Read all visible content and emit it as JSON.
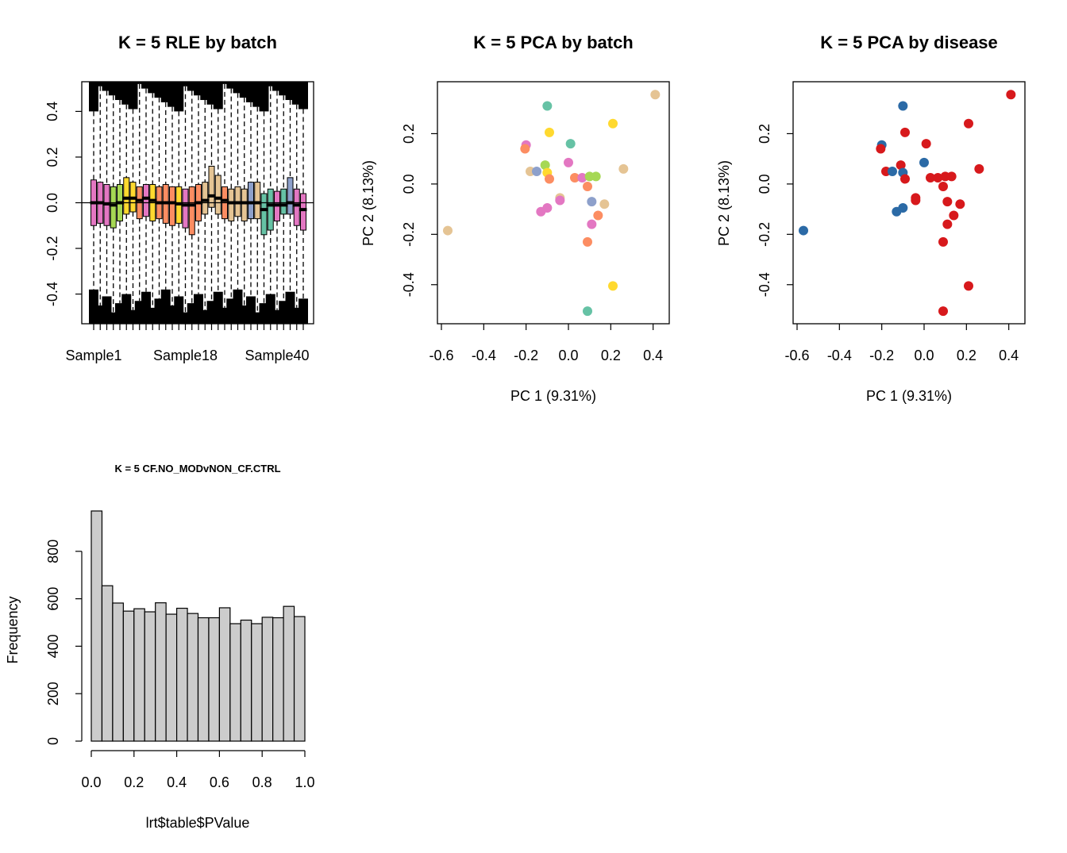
{
  "chart_data": [
    {
      "id": "rle",
      "type": "boxplot",
      "title": "K = 5 RLE by batch",
      "xlabel": "",
      "ylabel": "",
      "ylim": [
        -0.53,
        0.53
      ],
      "yticks": [
        -0.4,
        -0.2,
        0.0,
        0.2,
        0.4
      ],
      "ytick_labels": [
        "-0.4",
        "-0.2",
        "0.0",
        "0.2",
        "0.4"
      ],
      "xtick_labels": [
        {
          "index": 0,
          "label": "Sample1"
        },
        {
          "index": 14,
          "label": "Sample18"
        },
        {
          "index": 28,
          "label": "Sample40"
        }
      ],
      "reference_line": 0,
      "box_colors": [
        "#e377c2",
        "#e377c2",
        "#e377c2",
        "#a6d854",
        "#a6d854",
        "#ffd92f",
        "#ffd92f",
        "#fc8d62",
        "#e377c2",
        "#ffd92f",
        "#fc8d62",
        "#fc8d62",
        "#fc8d62",
        "#ffd92f",
        "#e377c2",
        "#fc8d62",
        "#fc8d62",
        "#e5c494",
        "#e5c494",
        "#e5c494",
        "#fc8d62",
        "#e5c494",
        "#e5c494",
        "#e5c494",
        "#8da0cb",
        "#e5c494",
        "#66c2a5",
        "#66c2a5",
        "#e377c2",
        "#66c2a5",
        "#8da0cb",
        "#e377c2",
        "#e377c2"
      ],
      "boxes": [
        {
          "q1": -0.1,
          "median": 0.0,
          "q3": 0.1
        },
        {
          "q1": -0.09,
          "median": 0.0,
          "q3": 0.09
        },
        {
          "q1": -0.1,
          "median": -0.005,
          "q3": 0.08
        },
        {
          "q1": -0.11,
          "median": -0.01,
          "q3": 0.07
        },
        {
          "q1": -0.08,
          "median": 0.0,
          "q3": 0.08
        },
        {
          "q1": -0.05,
          "median": 0.02,
          "q3": 0.11
        },
        {
          "q1": -0.04,
          "median": 0.02,
          "q3": 0.09
        },
        {
          "q1": -0.07,
          "median": 0.01,
          "q3": 0.07
        },
        {
          "q1": -0.06,
          "median": 0.02,
          "q3": 0.08
        },
        {
          "q1": -0.08,
          "median": 0.01,
          "q3": 0.08
        },
        {
          "q1": -0.07,
          "median": 0.0,
          "q3": 0.07
        },
        {
          "q1": -0.09,
          "median": 0.0,
          "q3": 0.08
        },
        {
          "q1": -0.1,
          "median": 0.0,
          "q3": 0.07
        },
        {
          "q1": -0.09,
          "median": -0.005,
          "q3": 0.07
        },
        {
          "q1": -0.11,
          "median": -0.01,
          "q3": 0.06
        },
        {
          "q1": -0.14,
          "median": -0.01,
          "q3": 0.07
        },
        {
          "q1": -0.08,
          "median": 0.0,
          "q3": 0.08
        },
        {
          "q1": -0.05,
          "median": 0.01,
          "q3": 0.09
        },
        {
          "q1": -0.02,
          "median": 0.03,
          "q3": 0.16
        },
        {
          "q1": -0.05,
          "median": 0.02,
          "q3": 0.12
        },
        {
          "q1": -0.07,
          "median": 0.01,
          "q3": 0.07
        },
        {
          "q1": -0.08,
          "median": 0.0,
          "q3": 0.06
        },
        {
          "q1": -0.06,
          "median": 0.0,
          "q3": 0.07
        },
        {
          "q1": -0.08,
          "median": 0.0,
          "q3": 0.06
        },
        {
          "q1": -0.07,
          "median": 0.0,
          "q3": 0.09
        },
        {
          "q1": -0.07,
          "median": 0.0,
          "q3": 0.09
        },
        {
          "q1": -0.14,
          "median": -0.03,
          "q3": 0.04
        },
        {
          "q1": -0.12,
          "median": -0.01,
          "q3": 0.06
        },
        {
          "q1": -0.08,
          "median": -0.01,
          "q3": 0.05
        },
        {
          "q1": -0.05,
          "median": -0.01,
          "q3": 0.06
        },
        {
          "q1": -0.05,
          "median": 0.0,
          "q3": 0.11
        },
        {
          "q1": -0.1,
          "median": -0.01,
          "q3": 0.06
        },
        {
          "q1": -0.12,
          "median": -0.03,
          "q3": 0.04
        }
      ]
    },
    {
      "id": "pca-batch",
      "type": "scatter",
      "title": "K = 5 PCA by batch",
      "xlabel": "PC 1 (9.31%)",
      "ylabel": "PC 2 (8.13%)",
      "xlim": [
        -0.6,
        0.45
      ],
      "ylim": [
        -0.53,
        0.4
      ],
      "xticks": [
        -0.6,
        -0.4,
        -0.2,
        0.0,
        0.2,
        0.4
      ],
      "xtick_labels": [
        "-0.6",
        "-0.4",
        "-0.2",
        "0.0",
        "0.2",
        "0.4"
      ],
      "yticks": [
        -0.4,
        -0.2,
        0.0,
        0.2
      ],
      "ytick_labels": [
        "-0.4",
        "-0.2",
        "0.0",
        "0.2"
      ],
      "points": [
        {
          "x": 0.41,
          "y": 0.355,
          "color": "#e5c494"
        },
        {
          "x": -0.1,
          "y": 0.31,
          "color": "#66c2a5"
        },
        {
          "x": -0.09,
          "y": 0.205,
          "color": "#ffd92f"
        },
        {
          "x": 0.21,
          "y": 0.24,
          "color": "#ffd92f"
        },
        {
          "x": 0.01,
          "y": 0.16,
          "color": "#66c2a5"
        },
        {
          "x": -0.2,
          "y": 0.155,
          "color": "#e377c2"
        },
        {
          "x": -0.205,
          "y": 0.14,
          "color": "#fc8d62"
        },
        {
          "x": -0.11,
          "y": 0.075,
          "color": "#a6d854"
        },
        {
          "x": 0.0,
          "y": 0.085,
          "color": "#e377c2"
        },
        {
          "x": -0.18,
          "y": 0.05,
          "color": "#e5c494"
        },
        {
          "x": -0.15,
          "y": 0.05,
          "color": "#8da0cb"
        },
        {
          "x": -0.1,
          "y": 0.045,
          "color": "#ffd92f"
        },
        {
          "x": -0.09,
          "y": 0.02,
          "color": "#fc8d62"
        },
        {
          "x": 0.03,
          "y": 0.025,
          "color": "#fc8d62"
        },
        {
          "x": 0.065,
          "y": 0.025,
          "color": "#e377c2"
        },
        {
          "x": 0.1,
          "y": 0.03,
          "color": "#a6d854"
        },
        {
          "x": 0.13,
          "y": 0.03,
          "color": "#a6d854"
        },
        {
          "x": 0.26,
          "y": 0.06,
          "color": "#e5c494"
        },
        {
          "x": 0.09,
          "y": -0.01,
          "color": "#fc8d62"
        },
        {
          "x": -0.04,
          "y": -0.055,
          "color": "#e5c494"
        },
        {
          "x": -0.04,
          "y": -0.065,
          "color": "#e377c2"
        },
        {
          "x": 0.11,
          "y": -0.07,
          "color": "#8da0cb"
        },
        {
          "x": 0.17,
          "y": -0.08,
          "color": "#e5c494"
        },
        {
          "x": -0.1,
          "y": -0.095,
          "color": "#e377c2"
        },
        {
          "x": -0.13,
          "y": -0.11,
          "color": "#e377c2"
        },
        {
          "x": 0.14,
          "y": -0.125,
          "color": "#fc8d62"
        },
        {
          "x": 0.11,
          "y": -0.16,
          "color": "#e377c2"
        },
        {
          "x": -0.57,
          "y": -0.185,
          "color": "#e5c494"
        },
        {
          "x": 0.09,
          "y": -0.23,
          "color": "#fc8d62"
        },
        {
          "x": 0.21,
          "y": -0.405,
          "color": "#ffd92f"
        },
        {
          "x": 0.09,
          "y": -0.505,
          "color": "#66c2a5"
        }
      ]
    },
    {
      "id": "pca-disease",
      "type": "scatter",
      "title": "K = 5 PCA by disease",
      "xlabel": "PC 1 (9.31%)",
      "ylabel": "PC 2 (8.13%)",
      "xlim": [
        -0.6,
        0.45
      ],
      "ylim": [
        -0.53,
        0.4
      ],
      "xticks": [
        -0.6,
        -0.4,
        -0.2,
        0.0,
        0.2,
        0.4
      ],
      "xtick_labels": [
        "-0.6",
        "-0.4",
        "-0.2",
        "0.0",
        "0.2",
        "0.4"
      ],
      "yticks": [
        -0.4,
        -0.2,
        0.0,
        0.2
      ],
      "ytick_labels": [
        "-0.4",
        "-0.2",
        "0.0",
        "0.2"
      ],
      "points": [
        {
          "x": 0.41,
          "y": 0.355,
          "color": "#d7191c"
        },
        {
          "x": -0.1,
          "y": 0.31,
          "color": "#2b6aa6"
        },
        {
          "x": -0.09,
          "y": 0.205,
          "color": "#d7191c"
        },
        {
          "x": 0.21,
          "y": 0.24,
          "color": "#d7191c"
        },
        {
          "x": 0.01,
          "y": 0.16,
          "color": "#d7191c"
        },
        {
          "x": -0.2,
          "y": 0.155,
          "color": "#2b6aa6"
        },
        {
          "x": -0.205,
          "y": 0.14,
          "color": "#d7191c"
        },
        {
          "x": -0.11,
          "y": 0.075,
          "color": "#d7191c"
        },
        {
          "x": 0.0,
          "y": 0.085,
          "color": "#2b6aa6"
        },
        {
          "x": -0.18,
          "y": 0.05,
          "color": "#d7191c"
        },
        {
          "x": -0.15,
          "y": 0.05,
          "color": "#2b6aa6"
        },
        {
          "x": -0.1,
          "y": 0.045,
          "color": "#2b6aa6"
        },
        {
          "x": -0.09,
          "y": 0.02,
          "color": "#d7191c"
        },
        {
          "x": 0.03,
          "y": 0.025,
          "color": "#d7191c"
        },
        {
          "x": 0.065,
          "y": 0.025,
          "color": "#d7191c"
        },
        {
          "x": 0.1,
          "y": 0.03,
          "color": "#d7191c"
        },
        {
          "x": 0.13,
          "y": 0.03,
          "color": "#d7191c"
        },
        {
          "x": 0.26,
          "y": 0.06,
          "color": "#d7191c"
        },
        {
          "x": 0.09,
          "y": -0.01,
          "color": "#d7191c"
        },
        {
          "x": -0.04,
          "y": -0.055,
          "color": "#d7191c"
        },
        {
          "x": -0.04,
          "y": -0.065,
          "color": "#d7191c"
        },
        {
          "x": 0.11,
          "y": -0.07,
          "color": "#d7191c"
        },
        {
          "x": 0.17,
          "y": -0.08,
          "color": "#d7191c"
        },
        {
          "x": -0.1,
          "y": -0.095,
          "color": "#2b6aa6"
        },
        {
          "x": -0.13,
          "y": -0.11,
          "color": "#2b6aa6"
        },
        {
          "x": 0.14,
          "y": -0.125,
          "color": "#d7191c"
        },
        {
          "x": 0.11,
          "y": -0.16,
          "color": "#d7191c"
        },
        {
          "x": -0.57,
          "y": -0.185,
          "color": "#2b6aa6"
        },
        {
          "x": 0.09,
          "y": -0.23,
          "color": "#d7191c"
        },
        {
          "x": 0.21,
          "y": -0.405,
          "color": "#d7191c"
        },
        {
          "x": 0.09,
          "y": -0.505,
          "color": "#d7191c"
        }
      ]
    },
    {
      "id": "pvalue-hist",
      "type": "bar",
      "title": "K = 5 CF.NO_MODvNON_CF.CTRL",
      "xlabel": "lrt$table$PValue",
      "ylabel": "Frequency",
      "bin_edges": [
        0.0,
        0.05,
        0.1,
        0.15,
        0.2,
        0.25,
        0.3,
        0.35,
        0.4,
        0.45,
        0.5,
        0.55,
        0.6,
        0.65,
        0.7,
        0.75,
        0.8,
        0.85,
        0.9,
        0.95,
        1.0
      ],
      "values": [
        970,
        655,
        582,
        548,
        558,
        545,
        583,
        535,
        560,
        538,
        520,
        520,
        562,
        495,
        510,
        495,
        522,
        520,
        568,
        525
      ],
      "xlim": [
        0,
        1
      ],
      "ylim": [
        0,
        1000
      ],
      "xticks": [
        0.0,
        0.2,
        0.4,
        0.6,
        0.8,
        1.0
      ],
      "xtick_labels": [
        "0.0",
        "0.2",
        "0.4",
        "0.6",
        "0.8",
        "1.0"
      ],
      "yticks": [
        0,
        200,
        400,
        600,
        800
      ],
      "ytick_labels": [
        "0",
        "200",
        "400",
        "600",
        "800"
      ],
      "bar_color": "#cccccc"
    }
  ]
}
